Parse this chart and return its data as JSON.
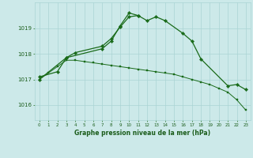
{
  "title": "Graphe pression niveau de la mer (hPa)",
  "background_color": "#cce9e9",
  "grid_color": "#aad4d4",
  "line_color": "#1a6b1a",
  "x_labels": [
    "0",
    "1",
    "2",
    "3",
    "4",
    "5",
    "6",
    "7",
    "8",
    "9",
    "10",
    "11",
    "12",
    "13",
    "14",
    "15",
    "16",
    "17",
    "18",
    "19",
    "20",
    "21",
    "22",
    "23"
  ],
  "ylim": [
    1015.4,
    1020.0
  ],
  "yticks": [
    1016,
    1017,
    1018,
    1019
  ],
  "series1_x": [
    0,
    1,
    2,
    3,
    4,
    5,
    6,
    7,
    8,
    9,
    10,
    11,
    12,
    13,
    14,
    15,
    16,
    17,
    18,
    19,
    20,
    21,
    22,
    23
  ],
  "series1_y": [
    1017.0,
    1017.25,
    1017.5,
    1017.75,
    1017.75,
    1017.7,
    1017.65,
    1017.6,
    1017.55,
    1017.5,
    1017.45,
    1017.4,
    1017.35,
    1017.3,
    1017.25,
    1017.2,
    1017.1,
    1017.0,
    1016.9,
    1016.8,
    1016.65,
    1016.5,
    1016.2,
    1015.8
  ],
  "series2_x": [
    0,
    3,
    4,
    7,
    8,
    9,
    10,
    11,
    12,
    13,
    14,
    16,
    17,
    18,
    21,
    22,
    23
  ],
  "series2_y": [
    1017.0,
    1017.85,
    1018.05,
    1018.3,
    1018.6,
    1019.05,
    1019.45,
    1019.5,
    1019.3,
    1019.45,
    1019.3,
    1018.8,
    1018.5,
    1017.8,
    1016.75,
    1016.8,
    1016.6
  ],
  "series3_x": [
    0,
    2,
    3,
    7,
    8,
    9,
    10,
    11
  ],
  "series3_y": [
    1017.1,
    1017.3,
    1017.85,
    1018.2,
    1018.5,
    1019.1,
    1019.6,
    1019.5
  ]
}
